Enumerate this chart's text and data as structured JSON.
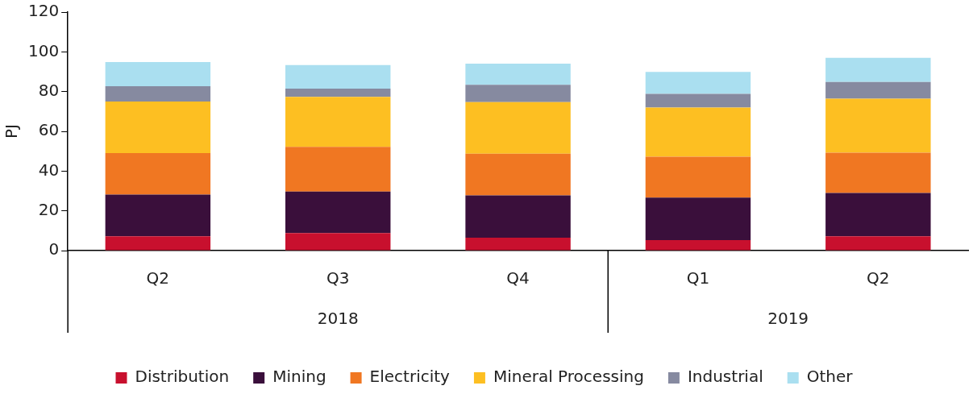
{
  "chart_data": {
    "type": "bar",
    "stacked": true,
    "ylabel": "PJ",
    "categories": [
      "Q2",
      "Q3",
      "Q4",
      "Q1",
      "Q2"
    ],
    "annotations": [
      "2018",
      "2019"
    ],
    "ylim": [
      0,
      120
    ],
    "yticks": [
      0,
      20,
      40,
      60,
      80,
      100,
      120
    ],
    "grid": false,
    "legend": "bottom",
    "series": [
      {
        "name": "Distribution",
        "color": "#c8102e",
        "values": [
          7.2,
          8.8,
          6.5,
          5.3,
          7.2
        ]
      },
      {
        "name": "Mining",
        "color": "#3a0f3b",
        "values": [
          21,
          20.9,
          21.3,
          21.4,
          21.8
        ]
      },
      {
        "name": "Electricity",
        "color": "#f07722",
        "values": [
          20.9,
          22.5,
          21,
          20.5,
          20.3
        ]
      },
      {
        "name": "Mineral Processing",
        "color": "#fdbf22",
        "values": [
          25.9,
          25.1,
          25.9,
          24.8,
          27.1
        ]
      },
      {
        "name": "Industrial",
        "color": "#868aa0",
        "values": [
          7.7,
          4.2,
          8.7,
          6.9,
          8.4
        ]
      },
      {
        "name": "Other",
        "color": "#aadff0",
        "values": [
          12.2,
          11.8,
          10.7,
          11,
          12.2
        ]
      }
    ]
  }
}
